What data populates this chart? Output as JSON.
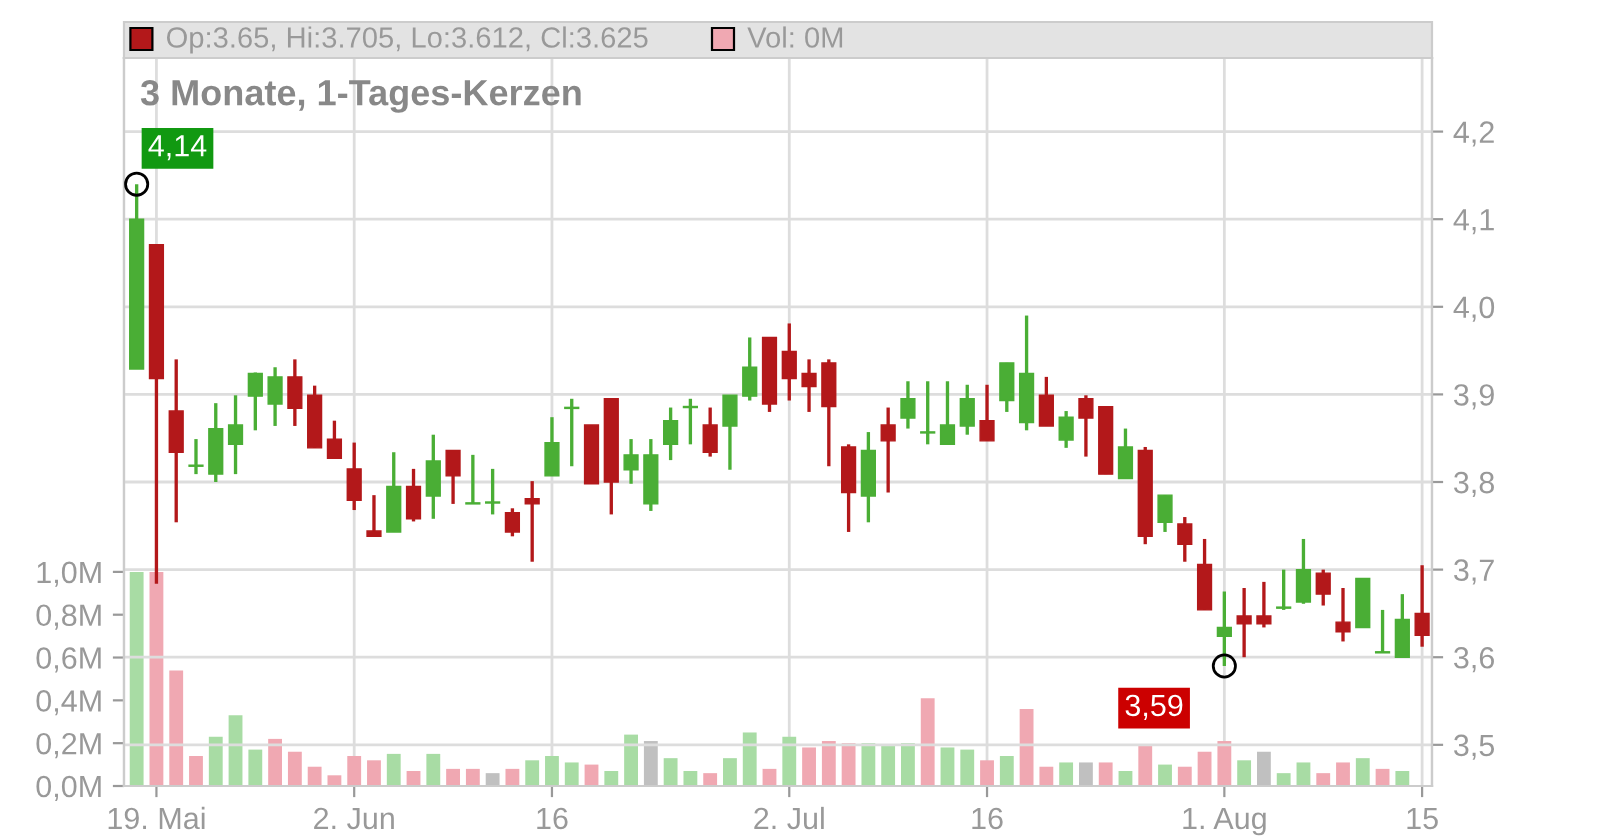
{
  "chart_data": {
    "type": "candlestick",
    "title": "3 Monate, 1-Tages-Kerzen",
    "annotations": [
      "Op:3.65, Hi:3.705, Lo:3.612, Cl:3.625",
      "Vol: 0M",
      "4,14",
      "3,59"
    ],
    "categories": [
      null,
      "19. Mai",
      null,
      null,
      null,
      null,
      null,
      null,
      null,
      null,
      null,
      "2. Jun",
      null,
      null,
      null,
      null,
      null,
      null,
      null,
      null,
      null,
      "16",
      null,
      null,
      null,
      null,
      null,
      null,
      null,
      null,
      null,
      null,
      null,
      "2. Jul",
      null,
      null,
      null,
      null,
      null,
      null,
      null,
      null,
      null,
      "16",
      null,
      null,
      null,
      null,
      null,
      null,
      null,
      null,
      null,
      null,
      null,
      "1. Aug",
      null,
      null,
      null,
      null,
      null,
      null,
      null,
      null,
      null,
      "15"
    ],
    "series": [
      {
        "ohlc": [
          [
            3.929,
            4.14,
            3.929,
            4.1
          ],
          [
            4.071,
            4.071,
            3.684,
            3.918
          ],
          [
            3.881,
            3.94,
            3.754,
            3.834
          ],
          [
            3.818,
            3.849,
            3.809,
            3.819
          ],
          [
            3.809,
            3.89,
            3.8,
            3.861
          ],
          [
            3.843,
            3.899,
            3.809,
            3.865
          ],
          [
            3.898,
            3.925,
            3.859,
            3.924
          ],
          [
            3.889,
            3.931,
            3.864,
            3.92
          ],
          [
            3.92,
            3.94,
            3.864,
            3.884
          ],
          [
            3.899,
            3.91,
            3.839,
            3.839
          ],
          [
            3.849,
            3.87,
            3.827,
            3.827
          ],
          [
            3.815,
            3.845,
            3.768,
            3.779
          ],
          [
            3.744,
            3.785,
            3.738,
            3.738
          ],
          [
            3.743,
            3.834,
            3.743,
            3.795
          ],
          [
            3.795,
            3.815,
            3.755,
            3.758
          ],
          [
            3.784,
            3.854,
            3.758,
            3.824
          ],
          [
            3.836,
            3.836,
            3.775,
            3.807
          ],
          [
            3.775,
            3.831,
            3.775,
            3.776
          ],
          [
            3.776,
            3.815,
            3.763,
            3.776
          ],
          [
            3.765,
            3.77,
            3.738,
            3.743
          ],
          [
            3.781,
            3.801,
            3.709,
            3.775
          ],
          [
            3.807,
            3.874,
            3.807,
            3.845
          ],
          [
            3.884,
            3.895,
            3.818,
            3.885
          ],
          [
            3.865,
            3.865,
            3.798,
            3.798
          ],
          [
            3.895,
            3.895,
            3.763,
            3.8
          ],
          [
            3.814,
            3.849,
            3.798,
            3.831
          ],
          [
            3.775,
            3.849,
            3.767,
            3.831
          ],
          [
            3.843,
            3.885,
            3.825,
            3.87
          ],
          [
            3.885,
            3.895,
            3.843,
            3.885
          ],
          [
            3.865,
            3.885,
            3.829,
            3.834
          ],
          [
            3.864,
            3.899,
            3.814,
            3.899
          ],
          [
            3.898,
            3.965,
            3.893,
            3.931
          ],
          [
            3.965,
            3.965,
            3.88,
            3.889
          ],
          [
            3.949,
            3.981,
            3.893,
            3.918
          ],
          [
            3.924,
            3.94,
            3.88,
            3.909
          ],
          [
            3.936,
            3.94,
            3.818,
            3.886
          ],
          [
            3.84,
            3.843,
            3.743,
            3.788
          ],
          [
            3.784,
            3.857,
            3.754,
            3.836
          ],
          [
            3.865,
            3.885,
            3.788,
            3.847
          ],
          [
            3.873,
            3.915,
            3.861,
            3.895
          ],
          [
            3.856,
            3.915,
            3.843,
            3.856
          ],
          [
            3.843,
            3.915,
            3.843,
            3.865
          ],
          [
            3.864,
            3.911,
            3.854,
            3.895
          ],
          [
            3.87,
            3.911,
            3.847,
            3.847
          ],
          [
            3.893,
            3.936,
            3.88,
            3.936
          ],
          [
            3.868,
            3.99,
            3.859,
            3.924
          ],
          [
            3.899,
            3.92,
            3.864,
            3.864
          ],
          [
            3.848,
            3.881,
            3.839,
            3.874
          ],
          [
            3.895,
            3.899,
            3.829,
            3.873
          ],
          [
            3.886,
            3.886,
            3.809,
            3.809
          ],
          [
            3.804,
            3.861,
            3.804,
            3.84
          ],
          [
            3.836,
            3.84,
            3.729,
            3.738
          ],
          [
            3.754,
            3.785,
            3.743,
            3.785
          ],
          [
            3.752,
            3.76,
            3.709,
            3.729
          ],
          [
            3.706,
            3.735,
            3.654,
            3.654
          ],
          [
            3.624,
            3.675,
            3.59,
            3.634
          ],
          [
            3.647,
            3.679,
            3.6,
            3.638
          ],
          [
            3.647,
            3.686,
            3.634,
            3.638
          ],
          [
            3.656,
            3.7,
            3.654,
            3.656
          ],
          [
            3.663,
            3.735,
            3.661,
            3.7
          ],
          [
            3.696,
            3.7,
            3.659,
            3.672
          ],
          [
            3.64,
            3.679,
            3.618,
            3.629
          ],
          [
            3.634,
            3.69,
            3.634,
            3.69
          ],
          [
            3.605,
            3.654,
            3.605,
            3.605
          ],
          [
            3.6,
            3.672,
            3.6,
            3.643
          ],
          [
            3.65,
            3.705,
            3.612,
            3.625
          ]
        ],
        "colors": [
          "#4aae35",
          "#b3181a",
          "#b3181a",
          "#4aae35",
          "#4aae35",
          "#4aae35",
          "#4aae35",
          "#4aae35",
          "#b3181a",
          "#b3181a",
          "#b3181a",
          "#b3181a",
          "#b3181a",
          "#4aae35",
          "#b3181a",
          "#4aae35",
          "#b3181a",
          "#4aae35",
          "#4aae35",
          "#b3181a",
          "#b3181a",
          "#4aae35",
          "#4aae35",
          "#b3181a",
          "#b3181a",
          "#4aae35",
          "#4aae35",
          "#4aae35",
          "#4aae35",
          "#b3181a",
          "#4aae35",
          "#4aae35",
          "#b3181a",
          "#b3181a",
          "#b3181a",
          "#b3181a",
          "#b3181a",
          "#4aae35",
          "#b3181a",
          "#4aae35",
          "#4aae35",
          "#4aae35",
          "#4aae35",
          "#b3181a",
          "#4aae35",
          "#4aae35",
          "#b3181a",
          "#4aae35",
          "#b3181a",
          "#b3181a",
          "#4aae35",
          "#b3181a",
          "#4aae35",
          "#b3181a",
          "#b3181a",
          "#4aae35",
          "#b3181a",
          "#b3181a",
          "#4aae35",
          "#4aae35",
          "#b3181a",
          "#b3181a",
          "#4aae35",
          "#4aae35",
          "#4aae35",
          "#b3181a"
        ]
      },
      {
        "type": "bar",
        "axis": "y2",
        "values": [
          1.0,
          1.0,
          0.54,
          0.14,
          0.23,
          0.33,
          0.17,
          0.22,
          0.16,
          0.09,
          0.05,
          0.14,
          0.12,
          0.15,
          0.07,
          0.15,
          0.08,
          0.08,
          0.06,
          0.08,
          0.12,
          0.14,
          0.11,
          0.1,
          0.07,
          0.24,
          0.21,
          0.13,
          0.07,
          0.06,
          0.13,
          0.25,
          0.08,
          0.23,
          0.18,
          0.21,
          0.2,
          0.2,
          0.19,
          0.2,
          0.41,
          0.18,
          0.17,
          0.12,
          0.14,
          0.36,
          0.09,
          0.11,
          0.11,
          0.11,
          0.07,
          0.19,
          0.1,
          0.09,
          0.16,
          0.21,
          0.12,
          0.16,
          0.06,
          0.11,
          0.06,
          0.11,
          0.13,
          0.08,
          0.07,
          0
        ],
        "colors": [
          "#a8dca4",
          "#f0a8b2",
          "#f0a8b2",
          "#f0a8b2",
          "#a8dca4",
          "#a8dca4",
          "#a8dca4",
          "#f0a8b2",
          "#f0a8b2",
          "#f0a8b2",
          "#f0a8b2",
          "#f0a8b2",
          "#f0a8b2",
          "#a8dca4",
          "#f0a8b2",
          "#a8dca4",
          "#f0a8b2",
          "#f0a8b2",
          "#c0c0c0",
          "#f0a8b2",
          "#a8dca4",
          "#a8dca4",
          "#a8dca4",
          "#f0a8b2",
          "#a8dca4",
          "#a8dca4",
          "#c0c0c0",
          "#a8dca4",
          "#a8dca4",
          "#f0a8b2",
          "#a8dca4",
          "#a8dca4",
          "#f0a8b2",
          "#a8dca4",
          "#f0a8b2",
          "#f0a8b2",
          "#f0a8b2",
          "#a8dca4",
          "#a8dca4",
          "#a8dca4",
          "#f0a8b2",
          "#a8dca4",
          "#a8dca4",
          "#f0a8b2",
          "#a8dca4",
          "#f0a8b2",
          "#f0a8b2",
          "#a8dca4",
          "#c0c0c0",
          "#f0a8b2",
          "#a8dca4",
          "#f0a8b2",
          "#a8dca4",
          "#f0a8b2",
          "#f0a8b2",
          "#f0a8b2",
          "#a8dca4",
          "#c0c0c0",
          "#a8dca4",
          "#a8dca4",
          "#f0a8b2",
          "#f0a8b2",
          "#a8dca4",
          "#f0a8b2",
          "#a8dca4",
          "#f0a8b2"
        ]
      }
    ],
    "ylim": [
      3.453,
      4.284
    ],
    "yticks": [
      {
        "value": 3.5,
        "label": "3,5"
      },
      {
        "value": 3.6,
        "label": "3,6"
      },
      {
        "value": 3.7,
        "label": "3,7"
      },
      {
        "value": 3.8,
        "label": "3,8"
      },
      {
        "value": 3.9,
        "label": "3,9"
      },
      {
        "value": 4.0,
        "label": "4,0"
      },
      {
        "value": 4.1,
        "label": "4,1"
      },
      {
        "value": 4.2,
        "label": "4,2"
      }
    ],
    "y2lim": [
      0,
      3.4
    ],
    "y2ticks": [
      {
        "value": 0,
        "label": "0,0M"
      },
      {
        "value": 0.2,
        "label": "0,2M"
      },
      {
        "value": 0.4,
        "label": "0,4M"
      },
      {
        "value": 0.6,
        "label": "0,6M"
      },
      {
        "value": 0.8,
        "label": "0,8M"
      },
      {
        "value": 1.0,
        "label": "1,0M"
      }
    ],
    "grid": true
  }
}
